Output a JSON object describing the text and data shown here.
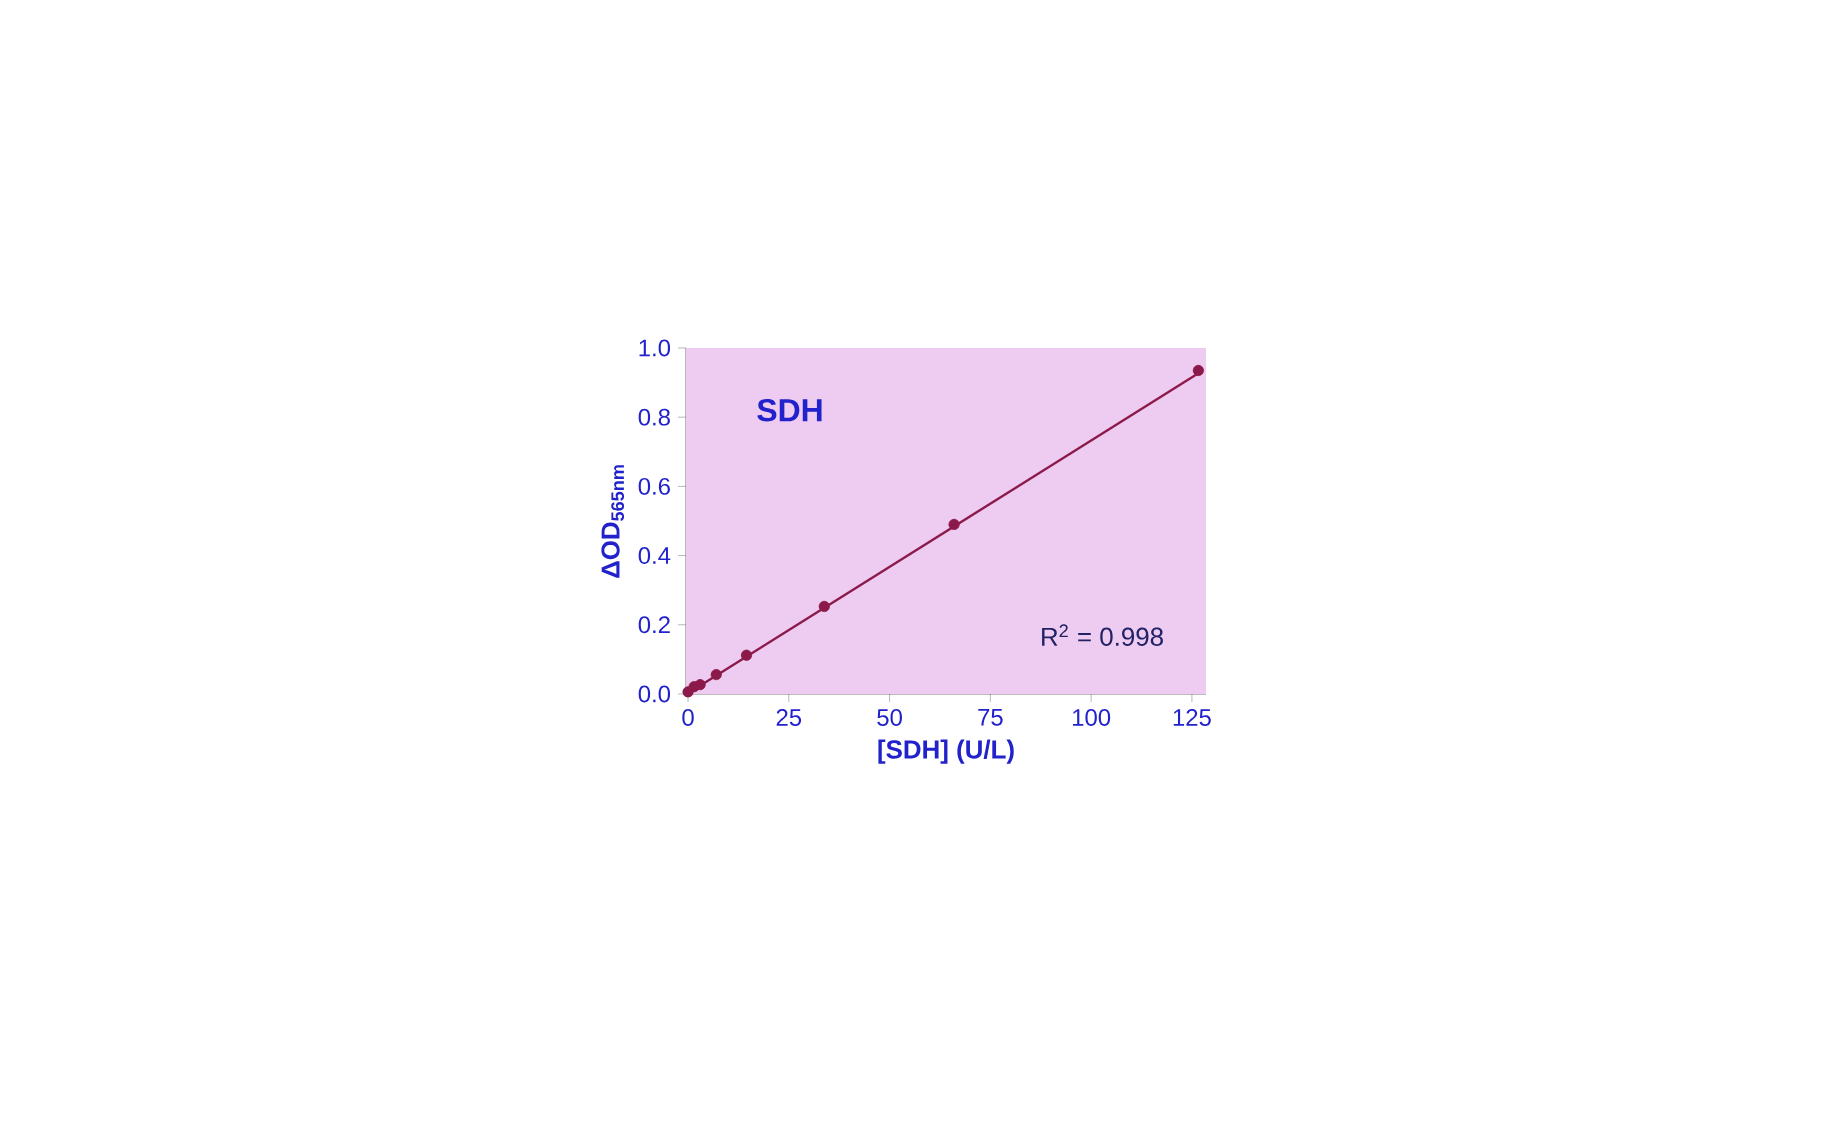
{
  "chart_data": {
    "type": "scatter",
    "title": "SDH",
    "xlabel": "[SDH] (U/L)",
    "ylabel": "ΔOD$_{565nm}$",
    "annotations": [
      "R$^{2}$ = 0.998"
    ],
    "series": [
      {
        "color": "#8b1a4a",
        "marker": "circle",
        "x": [
          0,
          1.5,
          3,
          7,
          14.5,
          33.8,
          66,
          126.6
        ],
        "values": [
          0.006,
          0.021,
          0.027,
          0.056,
          0.112,
          0.253,
          0.49,
          0.935
        ]
      },
      {
        "type": "line",
        "color": "#8b1a4a",
        "marker": "none",
        "line_style": "solid",
        "x": [
          0,
          127
        ],
        "values": [
          0.002,
          0.93
        ]
      }
    ],
    "xlim": [
      -0.5,
      128.5
    ],
    "ylim": [
      0,
      1.0
    ],
    "xticks": [
      0,
      25,
      50,
      75,
      100,
      125
    ],
    "yticks": [
      {
        "value": 0,
        "label": "0.0"
      },
      {
        "value": 0.2,
        "label": "0.2"
      },
      {
        "value": 0.4,
        "label": "0.4"
      },
      {
        "value": 0.6,
        "label": "0.6"
      },
      {
        "value": 0.8,
        "label": "0.8"
      },
      {
        "value": 1.0,
        "label": "1.0"
      }
    ]
  }
}
